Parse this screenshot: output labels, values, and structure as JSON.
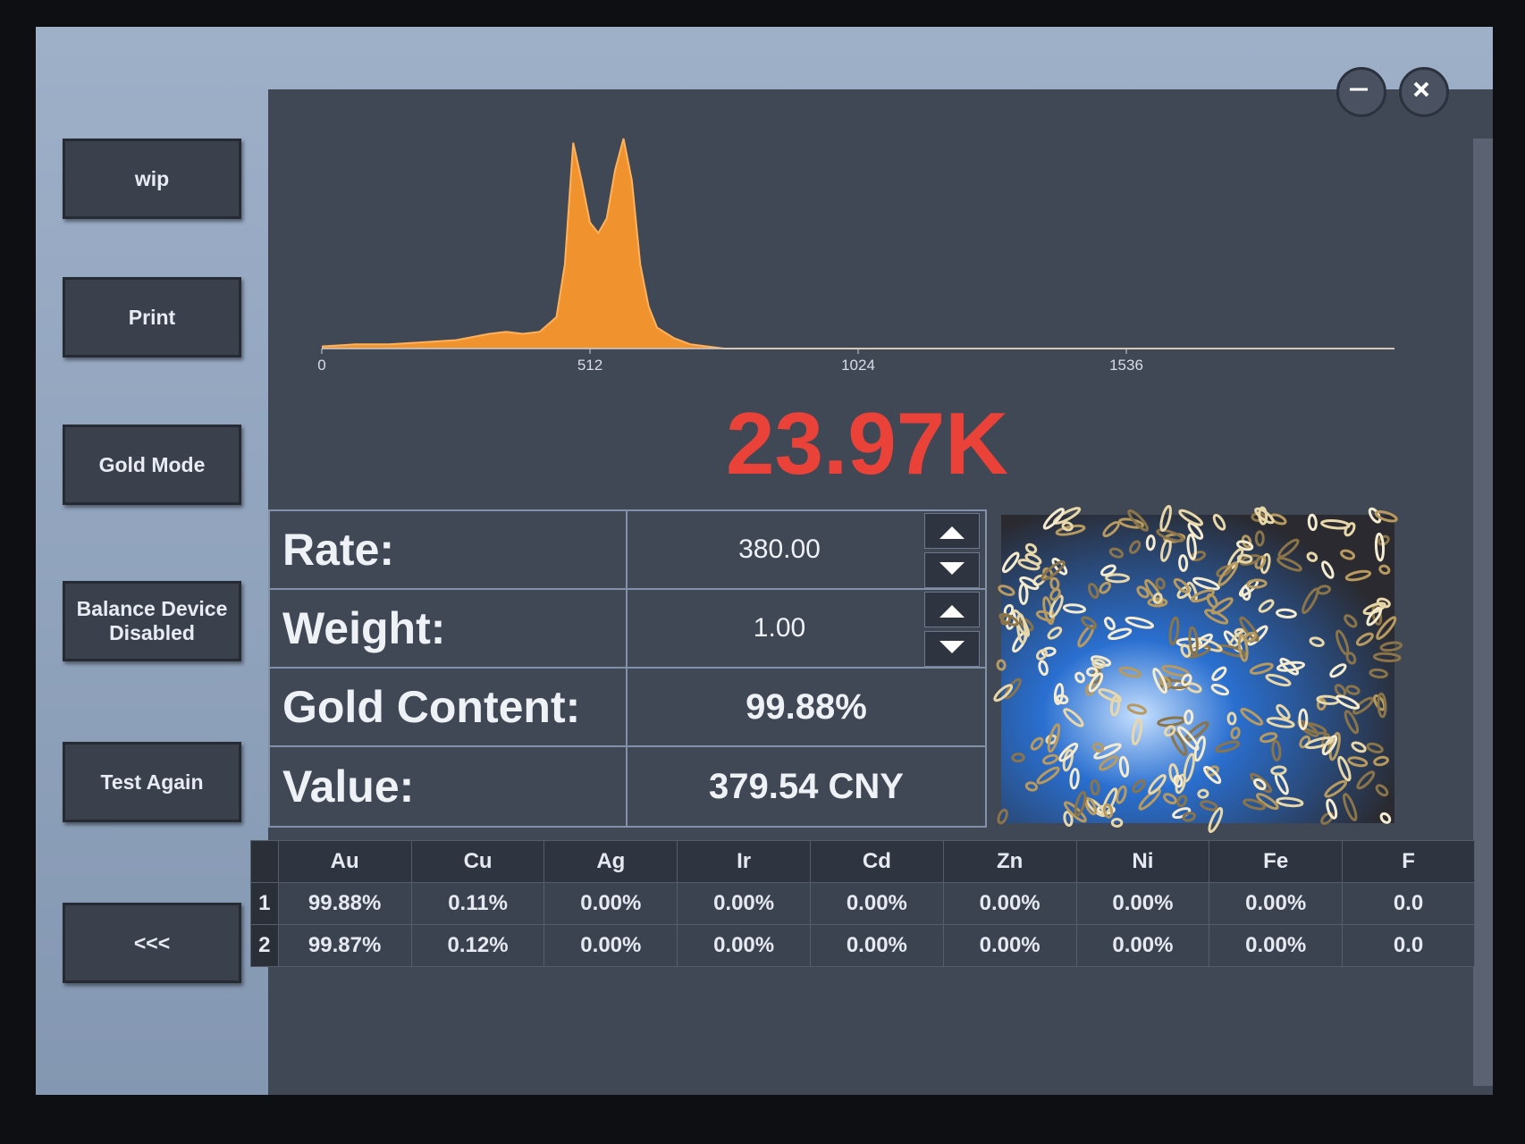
{
  "sidebar": {
    "buttons": [
      "wip",
      "Print",
      "Gold Mode",
      "Balance Device Disabled",
      "Test Again",
      "<<<"
    ]
  },
  "spectrum": {
    "type": "area",
    "x": [
      0,
      64,
      128,
      192,
      256,
      320,
      352,
      384,
      416,
      448,
      464,
      480,
      496,
      512,
      528,
      544,
      560,
      576,
      592,
      608,
      624,
      640,
      672,
      704,
      736,
      768,
      1024,
      1536,
      2048
    ],
    "values": [
      1,
      2,
      2,
      3,
      4,
      7,
      8,
      7,
      8,
      15,
      40,
      98,
      80,
      60,
      55,
      62,
      85,
      100,
      80,
      40,
      20,
      10,
      5,
      2,
      1,
      0,
      0,
      0,
      0
    ],
    "xlim": [
      0,
      2048
    ],
    "xticks": [
      0,
      512,
      1024,
      1536
    ],
    "color": "#f0922e"
  },
  "result": "23.97K",
  "info": {
    "rows": [
      [
        "Rate:",
        "380.00"
      ],
      [
        "Weight:",
        "1.00"
      ],
      [
        "Gold Content:",
        "99.88%"
      ],
      [
        "Value:",
        "379.54 CNY"
      ]
    ]
  },
  "elements": {
    "header": [
      "Au",
      "Cu",
      "Ag",
      "Ir",
      "Cd",
      "Zn",
      "Ni",
      "Fe",
      "F"
    ],
    "labels": [
      "1",
      "2"
    ],
    "cells": [
      [
        "99.88%",
        "0.11%",
        "0.00%",
        "0.00%",
        "0.00%",
        "0.00%",
        "0.00%",
        "0.00%",
        "0.0"
      ],
      [
        "99.87%",
        "0.12%",
        "0.00%",
        "0.00%",
        "0.00%",
        "0.00%",
        "0.00%",
        "0.00%",
        "0.0"
      ]
    ]
  }
}
